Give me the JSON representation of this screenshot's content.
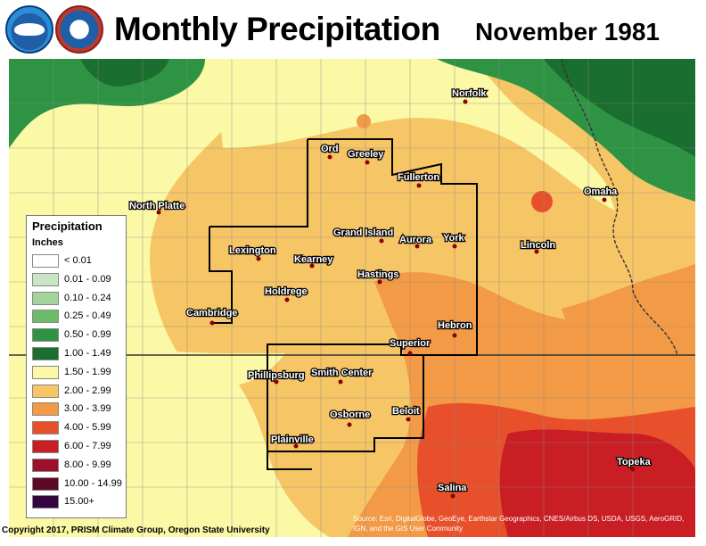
{
  "header": {
    "title": "Monthly Precipitation",
    "date": "November 1981",
    "logos": [
      "noaa-logo",
      "nws-logo"
    ]
  },
  "legend": {
    "title": "Precipitation",
    "units": "Inches",
    "bins": [
      {
        "label": "< 0.01",
        "color": "#ffffff"
      },
      {
        "label": "0.01 - 0.09",
        "color": "#c8e6c4"
      },
      {
        "label": "0.10 - 0.24",
        "color": "#a3d59b"
      },
      {
        "label": "0.25 - 0.49",
        "color": "#6cbc6a"
      },
      {
        "label": "0.50 - 0.99",
        "color": "#2e9444"
      },
      {
        "label": "1.00 - 1.49",
        "color": "#1a6e30"
      },
      {
        "label": "1.50 - 1.99",
        "color": "#fbf8a6"
      },
      {
        "label": "2.00 - 2.99",
        "color": "#f6c565"
      },
      {
        "label": "3.00 - 3.99",
        "color": "#f29a45"
      },
      {
        "label": "4.00 - 5.99",
        "color": "#e8502b"
      },
      {
        "label": "6.00 - 7.99",
        "color": "#c81e24"
      },
      {
        "label": "8.00 - 9.99",
        "color": "#9e0f2a"
      },
      {
        "label": "10.00 - 14.99",
        "color": "#5d0a24"
      },
      {
        "label": "15.00+",
        "color": "#33063f"
      }
    ]
  },
  "cities": [
    "Norfolk",
    "Ord",
    "Greeley",
    "Fullerton",
    "North Platte",
    "Omaha",
    "Grand Island",
    "Aurora",
    "York",
    "Lexington",
    "Kearney",
    "Lincoln",
    "Hastings",
    "Holdrege",
    "Cambridge",
    "Hebron",
    "Superior",
    "Phillipsburg",
    "Smith Center",
    "Beloit",
    "Osborne",
    "Plainville",
    "Topeka",
    "Salina"
  ],
  "footer": {
    "copyright": "Copyright 2017, PRISM Climate Group, Oregon State University",
    "source": "Source: Esri, DigitalGlobe, GeoEye, Earthstar Geographics, CNES/Airbus DS, USDA, USGS, AeroGRID, IGN, and the GIS User Community"
  }
}
